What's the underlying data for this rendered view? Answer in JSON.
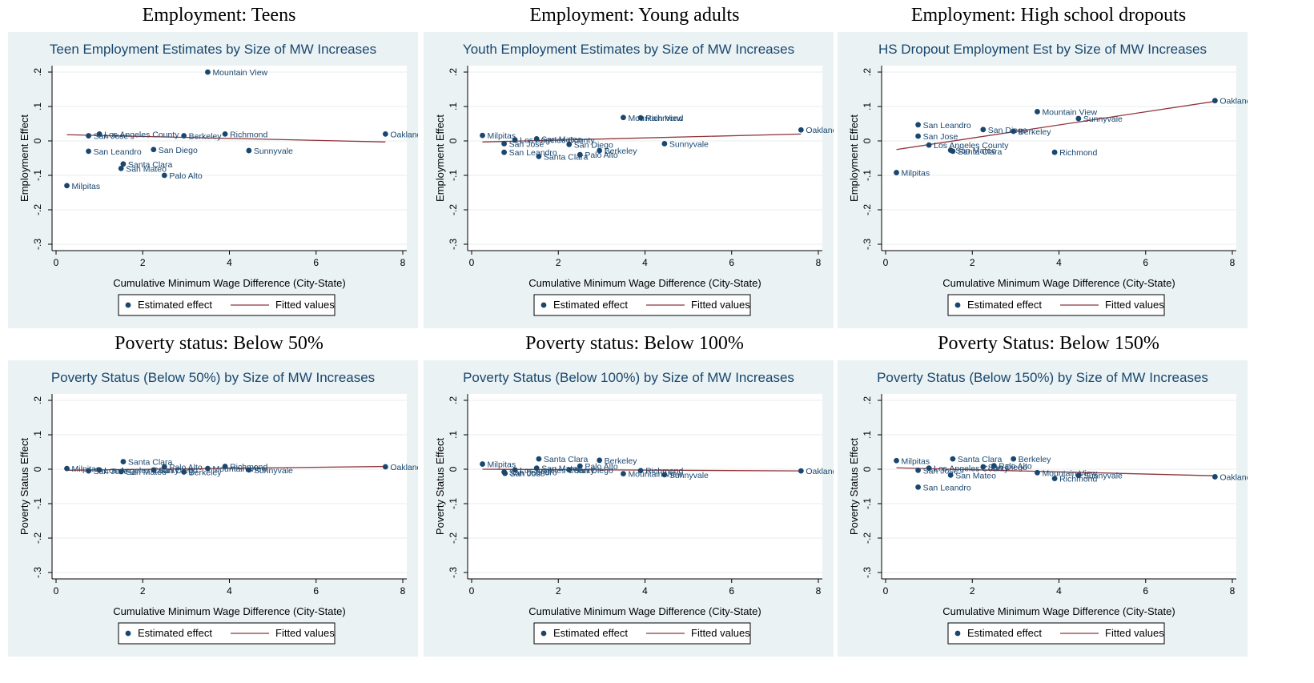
{
  "chart_data": [
    {
      "type": "scatter",
      "heading": "Employment: Teens",
      "title": "Teen Employment Estimates by Size of MW Increases",
      "xlabel": "Cumulative Minimum Wage Difference (City-State)",
      "ylabel": "Employment Effect",
      "xlim": [
        0,
        8
      ],
      "ylim": [
        -0.3,
        0.2
      ],
      "xticks": [
        "0",
        "2",
        "4",
        "6",
        "8"
      ],
      "yticks": [
        "-.3",
        "-.2",
        "-.1",
        "0",
        ".1",
        ".2"
      ],
      "legend": [
        "Estimated effect",
        "Fitted values"
      ],
      "legend_position": "bottom",
      "colors": {
        "points": "#1a476f",
        "fit": "#90353b",
        "background": "#eaf2f3"
      },
      "points": [
        {
          "label": "Mountain View",
          "x": 3.5,
          "y": 0.2
        },
        {
          "label": "Milpitas",
          "x": 0.25,
          "y": -0.13
        },
        {
          "label": "San Jose",
          "x": 0.75,
          "y": 0.015
        },
        {
          "label": "Los Angeles County",
          "x": 1.0,
          "y": 0.02
        },
        {
          "label": "Berkeley",
          "x": 2.95,
          "y": 0.015
        },
        {
          "label": "Richmond",
          "x": 3.9,
          "y": 0.02
        },
        {
          "label": "Oakland",
          "x": 7.6,
          "y": 0.02
        },
        {
          "label": "San Leandro",
          "x": 0.75,
          "y": -0.03
        },
        {
          "label": "San Diego",
          "x": 2.25,
          "y": -0.025
        },
        {
          "label": "Sunnyvale",
          "x": 4.45,
          "y": -0.028
        },
        {
          "label": "Santa Clara",
          "x": 1.55,
          "y": -0.067
        },
        {
          "label": "San Mateo",
          "x": 1.5,
          "y": -0.08
        },
        {
          "label": "Palo Alto",
          "x": 2.5,
          "y": -0.1
        }
      ],
      "fit": {
        "x": [
          0.25,
          7.6
        ],
        "y": [
          0.018,
          -0.003
        ]
      }
    },
    {
      "type": "scatter",
      "heading": "Employment: Young adults",
      "title": "Youth Employment Estimates by Size of MW Increases",
      "xlabel": "Cumulative Minimum Wage Difference (City-State)",
      "ylabel": "Employment Effect",
      "xlim": [
        0,
        8
      ],
      "ylim": [
        -0.3,
        0.2
      ],
      "xticks": [
        "0",
        "2",
        "4",
        "6",
        "8"
      ],
      "yticks": [
        "-.3",
        "-.2",
        "-.1",
        "0",
        ".1",
        ".2"
      ],
      "legend": [
        "Estimated effect",
        "Fitted values"
      ],
      "legend_position": "bottom",
      "colors": {
        "points": "#1a476f",
        "fit": "#90353b",
        "background": "#eaf2f3"
      },
      "points": [
        {
          "label": "Mountain View",
          "x": 3.5,
          "y": 0.068
        },
        {
          "label": "Richmond",
          "x": 3.9,
          "y": 0.067
        },
        {
          "label": "Oakland",
          "x": 7.6,
          "y": 0.032
        },
        {
          "label": "Milpitas",
          "x": 0.25,
          "y": 0.016
        },
        {
          "label": "Los Angeles County",
          "x": 1.0,
          "y": 0.003
        },
        {
          "label": "San Mateo",
          "x": 1.5,
          "y": 0.006
        },
        {
          "label": "San Jose",
          "x": 0.75,
          "y": -0.008
        },
        {
          "label": "San Diego",
          "x": 2.25,
          "y": -0.01
        },
        {
          "label": "Berkeley",
          "x": 2.95,
          "y": -0.028
        },
        {
          "label": "Sunnyvale",
          "x": 4.45,
          "y": -0.008
        },
        {
          "label": "San Leandro",
          "x": 0.75,
          "y": -0.033
        },
        {
          "label": "Santa Clara",
          "x": 1.55,
          "y": -0.045
        },
        {
          "label": "Palo Alto",
          "x": 2.5,
          "y": -0.04
        }
      ],
      "fit": {
        "x": [
          0.25,
          7.6
        ],
        "y": [
          -0.003,
          0.02
        ]
      }
    },
    {
      "type": "scatter",
      "heading": "Employment: High school dropouts",
      "title": "HS Dropout Employment Est by Size of MW Increases",
      "xlabel": "Cumulative Minimum Wage Difference (City-State)",
      "ylabel": "Employment Effect",
      "xlim": [
        0,
        8
      ],
      "ylim": [
        -0.3,
        0.2
      ],
      "xticks": [
        "0",
        "2",
        "4",
        "6",
        "8"
      ],
      "yticks": [
        "-.3",
        "-.2",
        "-.1",
        "0",
        ".1",
        ".2"
      ],
      "legend": [
        "Estimated effect",
        "Fitted values"
      ],
      "legend_position": "bottom",
      "colors": {
        "points": "#1a476f",
        "fit": "#90353b",
        "background": "#eaf2f3"
      },
      "points": [
        {
          "label": "Oakland",
          "x": 7.6,
          "y": 0.117
        },
        {
          "label": "Mountain View",
          "x": 3.5,
          "y": 0.085
        },
        {
          "label": "Sunnyvale",
          "x": 4.45,
          "y": 0.065
        },
        {
          "label": "San Leandro",
          "x": 0.75,
          "y": 0.047
        },
        {
          "label": "San Diego",
          "x": 2.25,
          "y": 0.033
        },
        {
          "label": "Berkeley",
          "x": 2.95,
          "y": 0.028
        },
        {
          "label": "San Jose",
          "x": 0.75,
          "y": 0.014
        },
        {
          "label": "Los Angeles County",
          "x": 1.0,
          "y": -0.012
        },
        {
          "label": "San Mateo",
          "x": 1.5,
          "y": -0.027
        },
        {
          "label": "Santa Clara",
          "x": 1.55,
          "y": -0.03
        },
        {
          "label": "Richmond",
          "x": 3.9,
          "y": -0.033
        },
        {
          "label": "Milpitas",
          "x": 0.25,
          "y": -0.092
        }
      ],
      "fit": {
        "x": [
          0.25,
          7.6
        ],
        "y": [
          -0.025,
          0.115
        ]
      }
    },
    {
      "type": "scatter",
      "heading": "Poverty status: Below 50%",
      "title": "Poverty Status (Below 50%) by Size of MW Increases",
      "xlabel": "Cumulative Minimum Wage Difference (City-State)",
      "ylabel": "Poverty Status Effect",
      "xlim": [
        0,
        8
      ],
      "ylim": [
        -0.3,
        0.2
      ],
      "xticks": [
        "0",
        "2",
        "4",
        "6",
        "8"
      ],
      "yticks": [
        "-.3",
        "-.2",
        "-.1",
        "0",
        ".1",
        ".2"
      ],
      "legend": [
        "Estimated effect",
        "Fitted values"
      ],
      "legend_position": "bottom",
      "colors": {
        "points": "#1a476f",
        "fit": "#90353b",
        "background": "#eaf2f3"
      },
      "points": [
        {
          "label": "Santa Clara",
          "x": 1.55,
          "y": 0.022
        },
        {
          "label": "Richmond",
          "x": 3.9,
          "y": 0.008
        },
        {
          "label": "Palo Alto",
          "x": 2.5,
          "y": 0.007
        },
        {
          "label": "Oakland",
          "x": 7.6,
          "y": 0.007
        },
        {
          "label": "Milpitas",
          "x": 0.25,
          "y": 0.002
        },
        {
          "label": "Mountain View",
          "x": 3.5,
          "y": 0.002
        },
        {
          "label": "Los Angeles County",
          "x": 1.0,
          "y": -0.002
        },
        {
          "label": "San Diego",
          "x": 2.25,
          "y": -0.002
        },
        {
          "label": "San Jose",
          "x": 0.75,
          "y": -0.005
        },
        {
          "label": "Sunnyvale",
          "x": 4.45,
          "y": -0.002
        },
        {
          "label": "San Mateo",
          "x": 1.5,
          "y": -0.007
        },
        {
          "label": "Berkeley",
          "x": 2.95,
          "y": -0.008
        }
      ],
      "fit": {
        "x": [
          0.25,
          7.6
        ],
        "y": [
          -0.003,
          0.008
        ]
      }
    },
    {
      "type": "scatter",
      "heading": "Poverty status: Below 100%",
      "title": "Poverty Status (Below 100%) by Size of MW Increases",
      "xlabel": "Cumulative Minimum Wage Difference (City-State)",
      "ylabel": "Poverty Status Effect",
      "xlim": [
        0,
        8
      ],
      "ylim": [
        -0.3,
        0.2
      ],
      "xticks": [
        "0",
        "2",
        "4",
        "6",
        "8"
      ],
      "yticks": [
        "-.3",
        "-.2",
        "-.1",
        "0",
        ".1",
        ".2"
      ],
      "legend": [
        "Estimated effect",
        "Fitted values"
      ],
      "legend_position": "bottom",
      "colors": {
        "points": "#1a476f",
        "fit": "#90353b",
        "background": "#eaf2f3"
      },
      "points": [
        {
          "label": "Santa Clara",
          "x": 1.55,
          "y": 0.03
        },
        {
          "label": "Berkeley",
          "x": 2.95,
          "y": 0.026
        },
        {
          "label": "Milpitas",
          "x": 0.25,
          "y": 0.015
        },
        {
          "label": "Palo Alto",
          "x": 2.5,
          "y": 0.009
        },
        {
          "label": "San Mateo",
          "x": 1.5,
          "y": 0.003
        },
        {
          "label": "Los Angeles County",
          "x": 1.0,
          "y": -0.002
        },
        {
          "label": "San Diego",
          "x": 2.25,
          "y": -0.002
        },
        {
          "label": "Richmond",
          "x": 3.9,
          "y": -0.004
        },
        {
          "label": "San Leandro",
          "x": 0.75,
          "y": -0.008
        },
        {
          "label": "San Jose",
          "x": 0.77,
          "y": -0.012
        },
        {
          "label": "Mountain View",
          "x": 3.5,
          "y": -0.013
        },
        {
          "label": "Sunnyvale",
          "x": 4.45,
          "y": -0.016
        },
        {
          "label": "Oakland",
          "x": 7.6,
          "y": -0.005
        }
      ],
      "fit": {
        "x": [
          0.25,
          7.6
        ],
        "y": [
          0.0,
          -0.005
        ]
      }
    },
    {
      "type": "scatter",
      "heading": "Poverty Status: Below 150%",
      "title": "Poverty Status (Below 150%) by Size of MW Increases",
      "xlabel": "Cumulative Minimum Wage Difference (City-State)",
      "ylabel": "Poverty Status Effect",
      "xlim": [
        0,
        8
      ],
      "ylim": [
        -0.3,
        0.2
      ],
      "xticks": [
        "0",
        "2",
        "4",
        "6",
        "8"
      ],
      "yticks": [
        "-.3",
        "-.2",
        "-.1",
        "0",
        ".1",
        ".2"
      ],
      "legend": [
        "Estimated effect",
        "Fitted values"
      ],
      "legend_position": "bottom",
      "colors": {
        "points": "#1a476f",
        "fit": "#90353b",
        "background": "#eaf2f3"
      },
      "points": [
        {
          "label": "Santa Clara",
          "x": 1.55,
          "y": 0.03
        },
        {
          "label": "Berkeley",
          "x": 2.95,
          "y": 0.03
        },
        {
          "label": "Milpitas",
          "x": 0.25,
          "y": 0.025
        },
        {
          "label": "Palo Alto",
          "x": 2.5,
          "y": 0.01
        },
        {
          "label": "San Diego",
          "x": 2.25,
          "y": 0.007
        },
        {
          "label": "Los Angeles County",
          "x": 1.0,
          "y": 0.003
        },
        {
          "label": "San Jose",
          "x": 0.75,
          "y": -0.003
        },
        {
          "label": "Mountain View",
          "x": 3.5,
          "y": -0.01
        },
        {
          "label": "San Mateo",
          "x": 1.5,
          "y": -0.017
        },
        {
          "label": "Sunnyvale",
          "x": 4.45,
          "y": -0.018
        },
        {
          "label": "Oakland",
          "x": 7.6,
          "y": -0.022
        },
        {
          "label": "Richmond",
          "x": 3.9,
          "y": -0.027
        },
        {
          "label": "San Leandro",
          "x": 0.75,
          "y": -0.052
        }
      ],
      "fit": {
        "x": [
          0.25,
          7.6
        ],
        "y": [
          0.004,
          -0.019
        ]
      }
    }
  ]
}
